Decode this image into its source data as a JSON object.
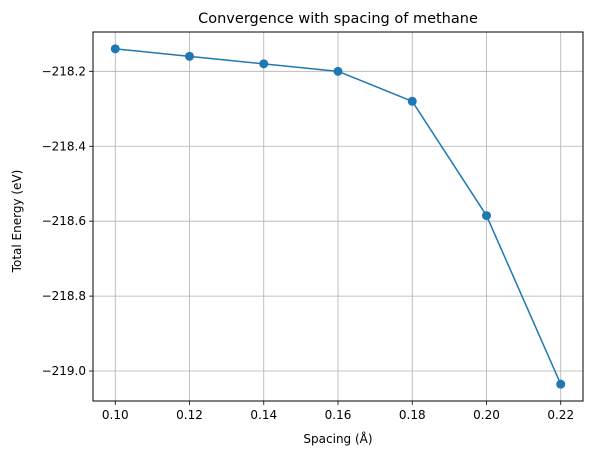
{
  "chart_data": {
    "type": "line",
    "title": "Convergence with spacing of methane",
    "xlabel": "Spacing (Å)",
    "ylabel": "Total Energy (eV)",
    "x": [
      0.1,
      0.12,
      0.14,
      0.16,
      0.18,
      0.2,
      0.22
    ],
    "series": [
      {
        "values": [
          -218.14,
          -218.16,
          -218.18,
          -218.2,
          -218.28,
          -218.585,
          -219.035
        ],
        "color": "#1f77b4",
        "marker": "circle"
      }
    ],
    "xticks": [
      0.1,
      0.12,
      0.14,
      0.16,
      0.18,
      0.2,
      0.22
    ],
    "xtick_labels": [
      "0.10",
      "0.12",
      "0.14",
      "0.16",
      "0.18",
      "0.20",
      "0.22"
    ],
    "yticks": [
      -218.2,
      -218.4,
      -218.6,
      -218.8,
      -219.0
    ],
    "ytick_labels": [
      "−218.2",
      "−218.4",
      "−218.6",
      "−218.8",
      "−219.0"
    ],
    "xlim": [
      0.094,
      0.226
    ],
    "ylim": [
      -219.08,
      -218.095
    ],
    "grid": true,
    "grid_color": "#b0b0b0",
    "legend": "none"
  }
}
